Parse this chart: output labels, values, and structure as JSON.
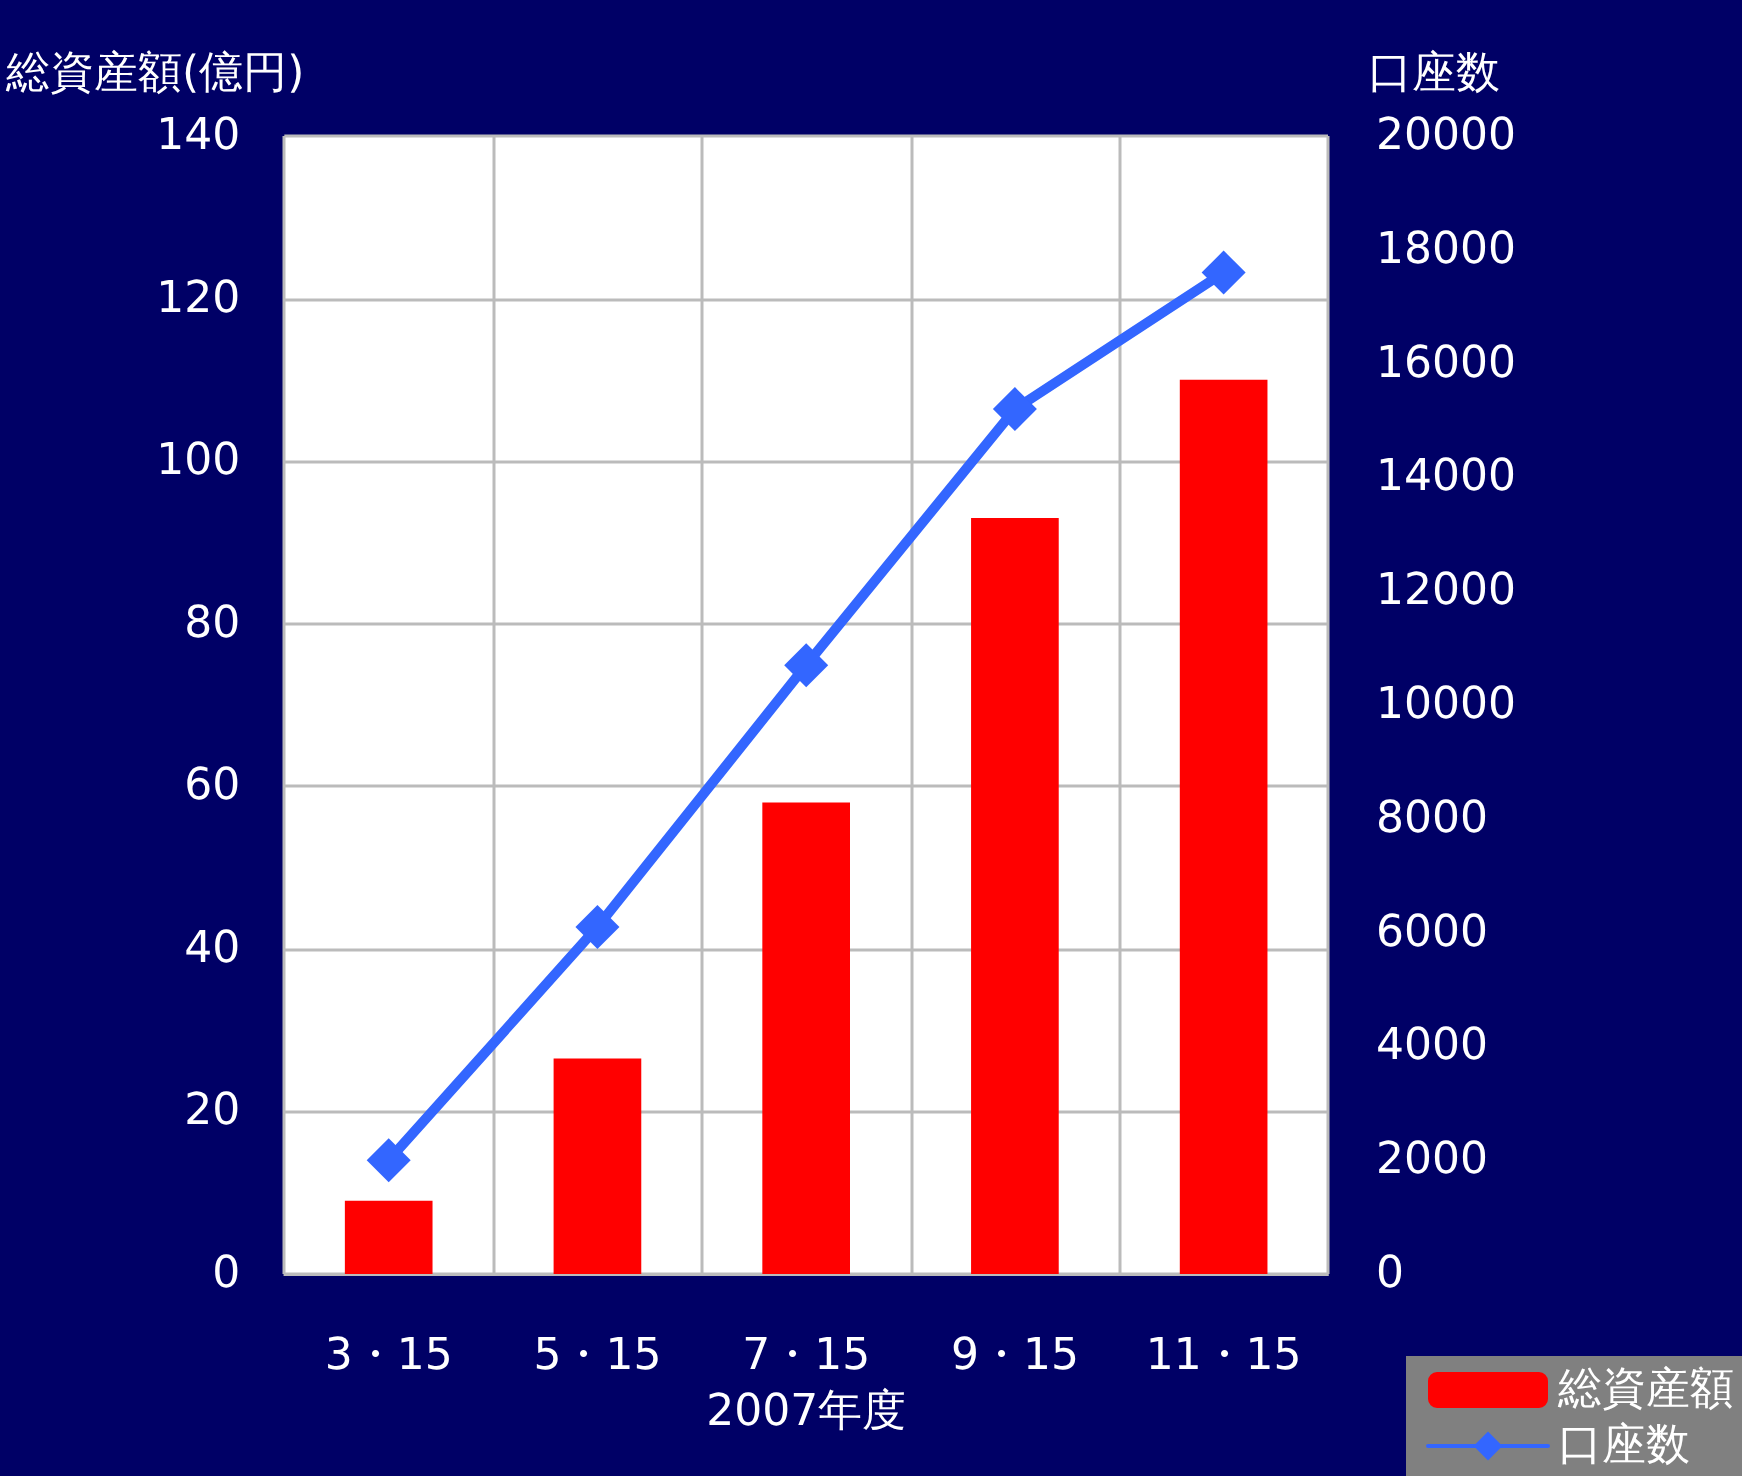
{
  "chart_data": {
    "type": "bar",
    "ylabel": "総資産額(億円)",
    "y2label": "口座数",
    "xlabel": "2007年度",
    "categories": [
      "3・15",
      "5・15",
      "7・15",
      "9・15",
      "11・15"
    ],
    "series": [
      {
        "name": "総資産額",
        "color": "#ff0000",
        "values": [
          9,
          26.5,
          58,
          93,
          110
        ]
      },
      {
        "name": "口座数",
        "type": "line",
        "axis": "y2",
        "color": "#3366ff",
        "marker": "diamond",
        "line_style": "solid",
        "values": [
          2000,
          6100,
          10700,
          15200,
          17600
        ]
      }
    ],
    "ylim": [
      0,
      140
    ],
    "yticks": [
      0,
      20,
      40,
      60,
      80,
      100,
      120,
      140
    ],
    "y2lim": [
      0,
      20000
    ],
    "y2ticks": [
      0,
      2000,
      4000,
      6000,
      8000,
      10000,
      12000,
      14000,
      16000,
      18000,
      20000
    ],
    "grid": true,
    "legend": "bottom right"
  }
}
